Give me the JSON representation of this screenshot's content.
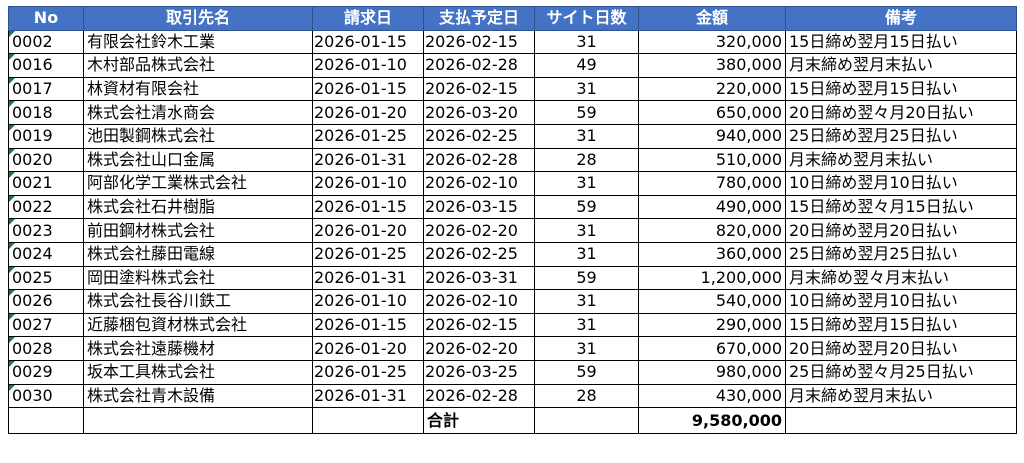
{
  "header": {
    "no": "No",
    "supplier": "取引先名",
    "invoice_date": "請求日",
    "payment_date": "支払予定日",
    "site_days": "サイト日数",
    "amount": "金額",
    "remarks": "備考"
  },
  "header_color": "#4472c4",
  "rows": [
    {
      "no": "0002",
      "supplier": "有限会社鈴木工業",
      "invoice_date": "2026-01-15",
      "payment_date": "2026-02-15",
      "site_days": "31",
      "amount": "320,000",
      "remarks": "15日締め翌月15日払い"
    },
    {
      "no": "0016",
      "supplier": "木村部品株式会社",
      "invoice_date": "2026-01-10",
      "payment_date": "2026-02-28",
      "site_days": "49",
      "amount": "380,000",
      "remarks": "月末締め翌月末払い"
    },
    {
      "no": "0017",
      "supplier": "林資材有限会社",
      "invoice_date": "2026-01-15",
      "payment_date": "2026-02-15",
      "site_days": "31",
      "amount": "220,000",
      "remarks": "15日締め翌月15日払い"
    },
    {
      "no": "0018",
      "supplier": "株式会社清水商会",
      "invoice_date": "2026-01-20",
      "payment_date": "2026-03-20",
      "site_days": "59",
      "amount": "650,000",
      "remarks": "20日締め翌々月20日払い"
    },
    {
      "no": "0019",
      "supplier": "池田製鋼株式会社",
      "invoice_date": "2026-01-25",
      "payment_date": "2026-02-25",
      "site_days": "31",
      "amount": "940,000",
      "remarks": "25日締め翌月25日払い"
    },
    {
      "no": "0020",
      "supplier": "株式会社山口金属",
      "invoice_date": "2026-01-31",
      "payment_date": "2026-02-28",
      "site_days": "28",
      "amount": "510,000",
      "remarks": "月末締め翌月末払い"
    },
    {
      "no": "0021",
      "supplier": "阿部化学工業株式会社",
      "invoice_date": "2026-01-10",
      "payment_date": "2026-02-10",
      "site_days": "31",
      "amount": "780,000",
      "remarks": "10日締め翌月10日払い"
    },
    {
      "no": "0022",
      "supplier": "株式会社石井樹脂",
      "invoice_date": "2026-01-15",
      "payment_date": "2026-03-15",
      "site_days": "59",
      "amount": "490,000",
      "remarks": "15日締め翌々月15日払い"
    },
    {
      "no": "0023",
      "supplier": "前田鋼材株式会社",
      "invoice_date": "2026-01-20",
      "payment_date": "2026-02-20",
      "site_days": "31",
      "amount": "820,000",
      "remarks": "20日締め翌月20日払い"
    },
    {
      "no": "0024",
      "supplier": "株式会社藤田電線",
      "invoice_date": "2026-01-25",
      "payment_date": "2026-02-25",
      "site_days": "31",
      "amount": "360,000",
      "remarks": "25日締め翌月25日払い"
    },
    {
      "no": "0025",
      "supplier": "岡田塗料株式会社",
      "invoice_date": "2026-01-31",
      "payment_date": "2026-03-31",
      "site_days": "59",
      "amount": "1,200,000",
      "remarks": "月末締め翌々月末払い"
    },
    {
      "no": "0026",
      "supplier": "株式会社長谷川鉄工",
      "invoice_date": "2026-01-10",
      "payment_date": "2026-02-10",
      "site_days": "31",
      "amount": "540,000",
      "remarks": "10日締め翌月10日払い"
    },
    {
      "no": "0027",
      "supplier": "近藤梱包資材株式会社",
      "invoice_date": "2026-01-15",
      "payment_date": "2026-02-15",
      "site_days": "31",
      "amount": "290,000",
      "remarks": "15日締め翌月15日払い"
    },
    {
      "no": "0028",
      "supplier": "株式会社遠藤機材",
      "invoice_date": "2026-01-20",
      "payment_date": "2026-02-20",
      "site_days": "31",
      "amount": "670,000",
      "remarks": "20日締め翌月20日払い"
    },
    {
      "no": "0029",
      "supplier": "坂本工具株式会社",
      "invoice_date": "2026-01-25",
      "payment_date": "2026-03-25",
      "site_days": "59",
      "amount": "980,000",
      "remarks": "25日締め翌々月25日払い"
    },
    {
      "no": "0030",
      "supplier": "株式会社青木設備",
      "invoice_date": "2026-01-31",
      "payment_date": "2026-02-28",
      "site_days": "28",
      "amount": "430,000",
      "remarks": "月末締め翌月末払い"
    }
  ],
  "total": {
    "label": "合計",
    "value": "9,580,000"
  }
}
